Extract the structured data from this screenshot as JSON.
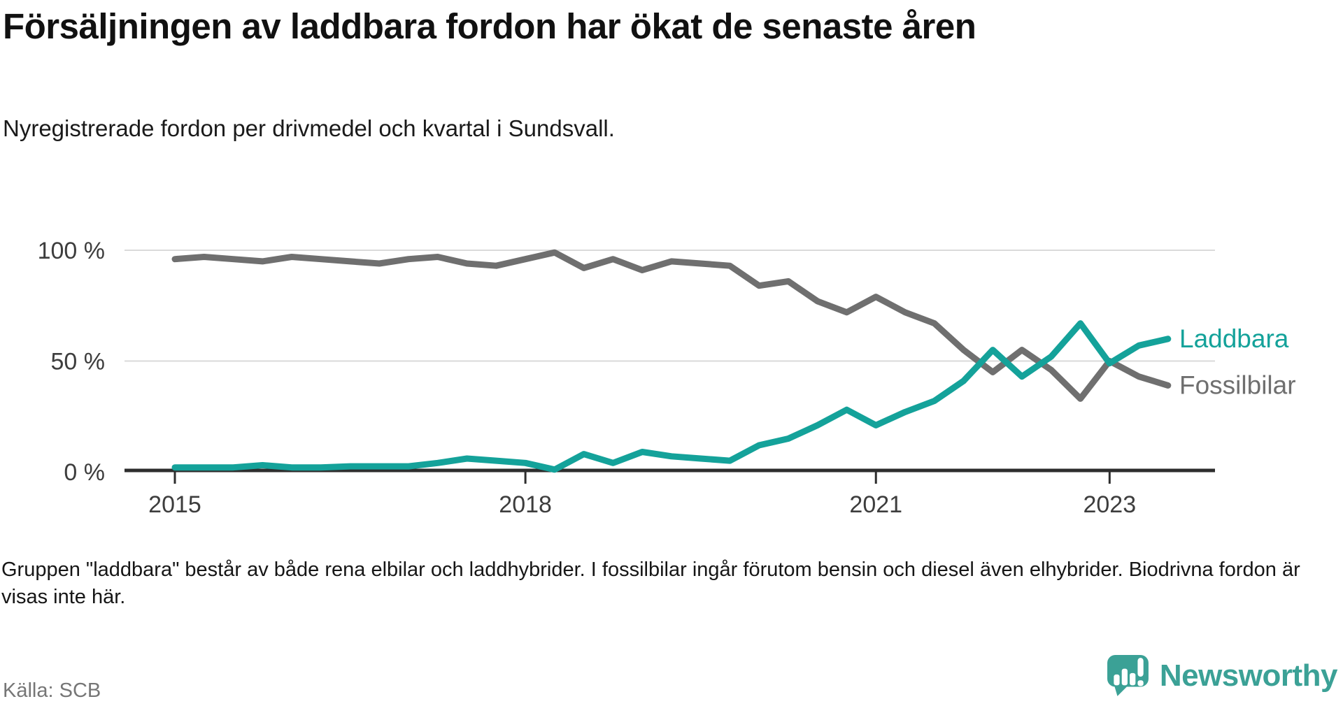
{
  "header": {
    "title": "Försäljningen av laddbara fordon har ökat de senaste åren",
    "subtitle": "Nyregistrerade fordon per drivmedel och kvartal i Sundsvall."
  },
  "footer": {
    "note": "Gruppen \"laddbara\" består av både rena elbilar och laddhybrider. I fossilbilar ingår förutom bensin och diesel även elhybrider. Biodrivna fordon är visas inte här.",
    "source": "Källa: SCB",
    "brand": "Newsworthy"
  },
  "colors": {
    "laddbara": "#14a29a",
    "fossil": "#6f6f6f",
    "brand_teal": "#3ba196",
    "grid": "#dadada",
    "axis": "#2e2e2e",
    "axis_text": "#3d3d3d"
  },
  "chart_data": {
    "type": "line",
    "title": "Försäljningen av laddbara fordon har ökat de senaste åren",
    "subtitle": "Nyregistrerade fordon per drivmedel och kvartal i Sundsvall.",
    "source": "Källa: SCB",
    "unit": "%",
    "ylim": [
      0,
      100
    ],
    "grid": "horizontal",
    "legend_position": "line-end-labels-right",
    "categories": [
      "2015 Q1",
      "2015 Q2",
      "2015 Q3",
      "2015 Q4",
      "2016 Q1",
      "2016 Q2",
      "2016 Q3",
      "2016 Q4",
      "2017 Q1",
      "2017 Q2",
      "2017 Q3",
      "2017 Q4",
      "2018 Q1",
      "2018 Q2",
      "2018 Q3",
      "2018 Q4",
      "2019 Q1",
      "2019 Q2",
      "2019 Q3",
      "2019 Q4",
      "2020 Q1",
      "2020 Q2",
      "2020 Q3",
      "2020 Q4",
      "2021 Q1",
      "2021 Q2",
      "2021 Q3",
      "2021 Q4",
      "2022 Q1",
      "2022 Q2",
      "2022 Q3",
      "2022 Q4",
      "2023 Q1",
      "2023 Q2",
      "2023 Q3"
    ],
    "series": [
      {
        "name": "Fossilbilar",
        "color": "#6f6f6f",
        "values": [
          96,
          97,
          96,
          95,
          97,
          96,
          95,
          94,
          96,
          97,
          94,
          93,
          96,
          99,
          92,
          96,
          91,
          95,
          94,
          93,
          84,
          86,
          77,
          72,
          79,
          72,
          67,
          55,
          45,
          55,
          46,
          33,
          50,
          43,
          39
        ]
      },
      {
        "name": "Laddbara",
        "color": "#14a29a",
        "values": [
          2,
          2,
          2,
          3,
          2,
          2,
          2.5,
          2.5,
          2.5,
          4,
          6,
          5,
          4,
          1,
          8,
          4,
          9,
          7,
          6,
          5,
          12,
          15,
          21,
          28,
          21,
          27,
          32,
          41,
          55,
          43,
          52,
          67,
          49,
          57,
          60
        ]
      }
    ],
    "x_ticks": [
      {
        "label": "2015",
        "index": 0
      },
      {
        "label": "2018",
        "index": 12
      },
      {
        "label": "2021",
        "index": 24
      },
      {
        "label": "2023",
        "index": 32
      }
    ],
    "y_ticks": [
      {
        "label": "100 %",
        "value": 100
      },
      {
        "label": "50 %",
        "value": 50
      },
      {
        "label": "0 %",
        "value": 0
      }
    ]
  }
}
